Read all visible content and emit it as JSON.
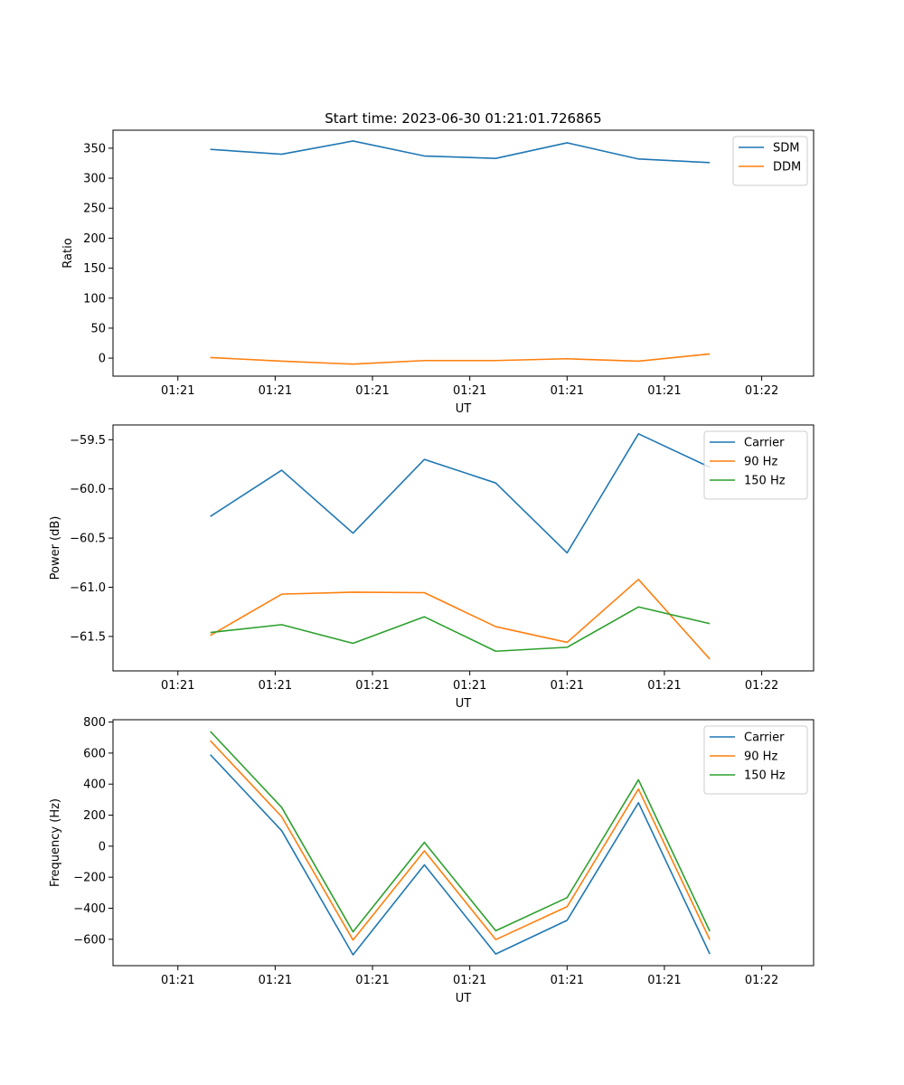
{
  "title": "Start time: 2023-06-30 01:21:01.726865",
  "colors": {
    "blue": "#1f77b4",
    "orange": "#ff7f0e",
    "green": "#2ca02c"
  },
  "chart_data": [
    {
      "type": "line",
      "title": "Start time: 2023-06-30 01:21:01.726865",
      "xlabel": "UT",
      "ylabel": "Ratio",
      "x_ticks": [
        "01:21",
        "01:21",
        "01:21",
        "01:21",
        "01:21",
        "01:21",
        "01:22"
      ],
      "x": [
        1,
        2,
        3,
        4,
        5,
        6,
        7,
        8
      ],
      "xlim": [
        0.8,
        9.4
      ],
      "ylim": [
        -30,
        380
      ],
      "yticks": [
        0,
        50,
        100,
        150,
        200,
        250,
        300,
        350
      ],
      "legend": "top-right",
      "grid": false,
      "series": [
        {
          "name": "SDM",
          "color": "#1f77b4",
          "values": [
            348,
            340,
            362,
            337,
            333,
            359,
            332,
            326
          ]
        },
        {
          "name": "DDM",
          "color": "#ff7f0e",
          "values": [
            1,
            -5,
            -10,
            -4,
            -4,
            -1,
            -5,
            7
          ]
        }
      ]
    },
    {
      "type": "line",
      "xlabel": "UT",
      "ylabel": "Power (dB)",
      "x_ticks": [
        "01:21",
        "01:21",
        "01:21",
        "01:21",
        "01:21",
        "01:21",
        "01:22"
      ],
      "x": [
        1,
        2,
        3,
        4,
        5,
        6,
        7,
        8
      ],
      "xlim": [
        0.8,
        9.4
      ],
      "ylim": [
        -61.85,
        -59.35
      ],
      "yticks": [
        -61.5,
        -61.0,
        -60.5,
        -60.0,
        -59.5
      ],
      "ytick_labels": [
        "−61.5",
        "−61.0",
        "−60.5",
        "−60.0",
        "−59.5"
      ],
      "legend": "top-right",
      "grid": false,
      "series": [
        {
          "name": "Carrier",
          "color": "#1f77b4",
          "values": [
            -60.28,
            -59.81,
            -60.45,
            -59.7,
            -59.94,
            -60.65,
            -59.44,
            -59.78
          ]
        },
        {
          "name": "90 Hz",
          "color": "#ff7f0e",
          "values": [
            -61.49,
            -61.07,
            -61.05,
            -61.055,
            -61.4,
            -61.56,
            -60.92,
            -61.73
          ]
        },
        {
          "name": "150 Hz",
          "color": "#2ca02c",
          "values": [
            -61.46,
            -61.38,
            -61.57,
            -61.3,
            -61.65,
            -61.61,
            -61.2,
            -61.37
          ]
        }
      ]
    },
    {
      "type": "line",
      "xlabel": "UT",
      "ylabel": "Frequency (Hz)",
      "x_ticks": [
        "01:21",
        "01:21",
        "01:21",
        "01:21",
        "01:21",
        "01:21",
        "01:22"
      ],
      "x": [
        1,
        2,
        3,
        4,
        5,
        6,
        7,
        8
      ],
      "xlim": [
        0.8,
        9.4
      ],
      "ylim": [
        -770,
        815
      ],
      "yticks": [
        -600,
        -400,
        -200,
        0,
        200,
        400,
        600,
        800
      ],
      "ytick_labels": [
        "−600",
        "−400",
        "−200",
        "0",
        "200",
        "400",
        "600",
        "800"
      ],
      "legend": "top-right",
      "grid": false,
      "series": [
        {
          "name": "Carrier",
          "color": "#1f77b4",
          "values": [
            590,
            100,
            -700,
            -120,
            -695,
            -478,
            280,
            -695
          ]
        },
        {
          "name": "90 Hz",
          "color": "#ff7f0e",
          "values": [
            680,
            190,
            -605,
            -30,
            -602,
            -390,
            368,
            -603
          ]
        },
        {
          "name": "150 Hz",
          "color": "#2ca02c",
          "values": [
            740,
            250,
            -552,
            25,
            -545,
            -332,
            428,
            -548
          ]
        }
      ]
    }
  ]
}
